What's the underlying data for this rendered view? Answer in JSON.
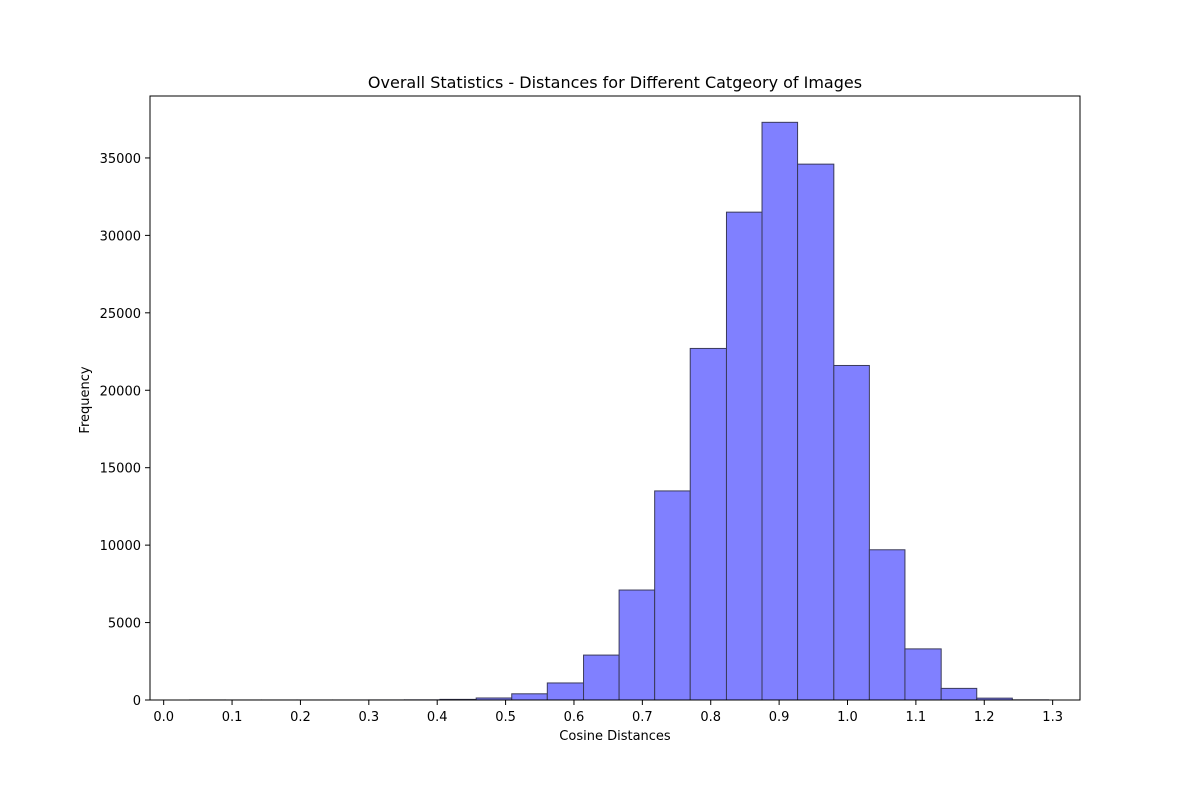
{
  "chart_data": {
    "type": "bar",
    "title": "Overall Statistics - Distances for Different Catgeory of Images",
    "xlabel": "Cosine Distances",
    "ylabel": "Frequency",
    "xlim": [
      -0.02,
      1.34
    ],
    "ylim": [
      0,
      39000
    ],
    "x_ticks": [
      "0.0",
      "0.1",
      "0.2",
      "0.3",
      "0.4",
      "0.5",
      "0.6",
      "0.7",
      "0.8",
      "0.9",
      "1.0",
      "1.1",
      "1.2",
      "1.3"
    ],
    "y_ticks": [
      "0",
      "5000",
      "10000",
      "15000",
      "20000",
      "25000",
      "30000",
      "35000"
    ],
    "grid": false,
    "bar_color": "#8080ff",
    "edge_color": "#3a3a5a",
    "bins": [
      {
        "start": 0.038,
        "end": 0.09,
        "value": 5
      },
      {
        "start": 0.09,
        "end": 0.143,
        "value": 3
      },
      {
        "start": 0.143,
        "end": 0.195,
        "value": 3
      },
      {
        "start": 0.195,
        "end": 0.247,
        "value": 3
      },
      {
        "start": 0.247,
        "end": 0.3,
        "value": 3
      },
      {
        "start": 0.3,
        "end": 0.352,
        "value": 5
      },
      {
        "start": 0.352,
        "end": 0.404,
        "value": 10
      },
      {
        "start": 0.404,
        "end": 0.457,
        "value": 40
      },
      {
        "start": 0.457,
        "end": 0.509,
        "value": 130
      },
      {
        "start": 0.509,
        "end": 0.561,
        "value": 400
      },
      {
        "start": 0.561,
        "end": 0.614,
        "value": 1100
      },
      {
        "start": 0.614,
        "end": 0.666,
        "value": 2900
      },
      {
        "start": 0.666,
        "end": 0.718,
        "value": 7100
      },
      {
        "start": 0.718,
        "end": 0.77,
        "value": 13500
      },
      {
        "start": 0.77,
        "end": 0.823,
        "value": 22700
      },
      {
        "start": 0.823,
        "end": 0.875,
        "value": 31500
      },
      {
        "start": 0.875,
        "end": 0.927,
        "value": 37300
      },
      {
        "start": 0.927,
        "end": 0.98,
        "value": 34600
      },
      {
        "start": 0.98,
        "end": 1.032,
        "value": 21600
      },
      {
        "start": 1.032,
        "end": 1.084,
        "value": 9700
      },
      {
        "start": 1.084,
        "end": 1.137,
        "value": 3300
      },
      {
        "start": 1.137,
        "end": 1.189,
        "value": 750
      },
      {
        "start": 1.189,
        "end": 1.241,
        "value": 120
      },
      {
        "start": 1.241,
        "end": 1.294,
        "value": 10
      }
    ]
  }
}
